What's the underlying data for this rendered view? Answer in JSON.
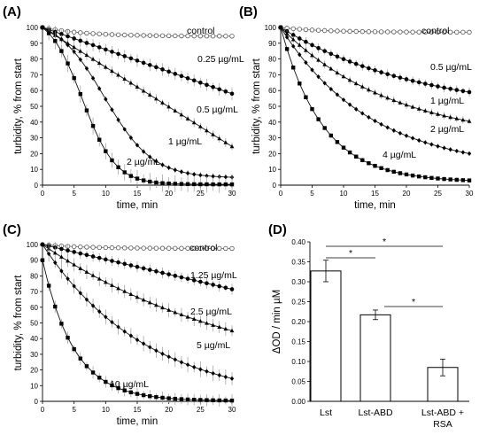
{
  "chart_data": [
    {
      "panel": "(A)",
      "type": "line",
      "xlabel": "time, min",
      "ylabel": "turbidity, % from start",
      "xlim": [
        0,
        30
      ],
      "ylim": [
        0,
        100
      ],
      "xticks": [
        0,
        5,
        10,
        15,
        20,
        25,
        30
      ],
      "yticks": [
        0,
        10,
        20,
        30,
        40,
        50,
        60,
        70,
        80,
        90,
        100
      ],
      "series": [
        {
          "name": "control",
          "marker": "open-circle",
          "start": 100,
          "end": 94.5,
          "shape": "exp",
          "k": 0.15,
          "err": 0.6
        },
        {
          "name": "0.25 µg/mL",
          "marker": "circle",
          "start": 100,
          "end": 58,
          "shape": "linear",
          "err": 4
        },
        {
          "name": "0.5 µg/mL",
          "marker": "triangle",
          "start": 100,
          "end": 24.5,
          "shape": "linear",
          "err": 3
        },
        {
          "name": "1 µg/mL",
          "marker": "diamond",
          "start": 100,
          "end": 5,
          "shape": "sigmoid",
          "mid": 9.8,
          "w": 3.8,
          "err": 2
        },
        {
          "name": "2 µg/mL",
          "marker": "square",
          "start": 100,
          "end": 0.5,
          "shape": "sigmoid",
          "mid": 6.3,
          "w": 2.6,
          "err": 5.5
        }
      ],
      "labels": [
        "control",
        "0.25 µg/mL",
        "0.5 µg/mL",
        "1 µg/mL",
        "2 µg/mL"
      ]
    },
    {
      "panel": "(B)",
      "type": "line",
      "xlabel": "time, min",
      "ylabel": "turbidity, % from start",
      "xlim": [
        0,
        30
      ],
      "ylim": [
        0,
        100
      ],
      "xticks": [
        0,
        5,
        10,
        15,
        20,
        25,
        30
      ],
      "yticks": [
        0,
        10,
        20,
        30,
        40,
        50,
        60,
        70,
        80,
        90,
        100
      ],
      "series": [
        {
          "name": "control",
          "marker": "open-circle",
          "start": 100,
          "end": 97,
          "shape": "exp",
          "k": 0.15,
          "err": 0.6
        },
        {
          "name": "0.5 µg/mL",
          "marker": "circle",
          "start": 100,
          "end": 59,
          "shape": "exp",
          "k": 0.045,
          "err": 3
        },
        {
          "name": "1 µg/mL",
          "marker": "triangle",
          "start": 100,
          "end": 40.5,
          "shape": "exp",
          "k": 0.055,
          "err": 2.5
        },
        {
          "name": "2 µg/mL",
          "marker": "diamond",
          "start": 100,
          "end": 20,
          "shape": "exp",
          "k": 0.07,
          "err": 1.5
        },
        {
          "name": "4 µg/mL",
          "marker": "square",
          "start": 100,
          "end": 3,
          "shape": "exp",
          "k": 0.15,
          "err": 1.5
        }
      ],
      "labels": [
        "control",
        "0.5 µg/mL",
        "1 µg/mL",
        "2 µg/mL",
        "4 µg/mL"
      ]
    },
    {
      "panel": "(C)",
      "type": "line",
      "xlabel": "time, min",
      "ylabel": "turbidity, % from start",
      "xlim": [
        0,
        30
      ],
      "ylim": [
        0,
        100
      ],
      "xticks": [
        0,
        5,
        10,
        15,
        20,
        25,
        30
      ],
      "yticks": [
        0,
        10,
        20,
        30,
        40,
        50,
        60,
        70,
        80,
        90,
        100
      ],
      "series": [
        {
          "name": "control",
          "marker": "open-circle",
          "start": 100,
          "end": 97.5,
          "shape": "exp",
          "k": 0.15,
          "err": 0.6
        },
        {
          "name": "1.25 µg/mL",
          "marker": "circle",
          "start": 100,
          "end": 71.5,
          "shape": "linear",
          "err": 3.5
        },
        {
          "name": "2.5 µg/mL",
          "marker": "triangle",
          "start": 100,
          "end": 45,
          "shape": "exp",
          "k": 0.03,
          "err": 4.5
        },
        {
          "name": "5 µg/mL",
          "marker": "diamond",
          "start": 100,
          "end": 14.5,
          "shape": "exp",
          "k": 0.06,
          "err": 5
        },
        {
          "name": "10 µg/mL",
          "marker": "square",
          "start": 90,
          "end": 0.5,
          "shape": "exp",
          "k": 0.2,
          "err": 4
        }
      ],
      "labels": [
        "control",
        "1.25 µg/mL",
        "2.5 µg/mL",
        "5 µg/mL",
        "10 µg/mL"
      ]
    },
    {
      "panel": "(D)",
      "type": "bar",
      "ylabel": "ΔOD / min µM",
      "ylim": [
        0,
        0.4
      ],
      "yticks": [
        "0.00",
        "0.05",
        "0.10",
        "0.15",
        "0.20",
        "0.25",
        "0.30",
        "0.35",
        "0.40"
      ],
      "categories": [
        "Lst",
        "Lst-ABD",
        "Lst-ABD + RSA"
      ],
      "values": [
        0.327,
        0.217,
        0.085
      ],
      "errors": [
        0.027,
        0.012,
        0.021
      ],
      "significance": [
        {
          "from": 0,
          "to": 1,
          "label": "*"
        },
        {
          "from": 0,
          "to": 2,
          "label": "*"
        },
        {
          "from": 1,
          "to": 2,
          "label": "*"
        }
      ]
    }
  ]
}
